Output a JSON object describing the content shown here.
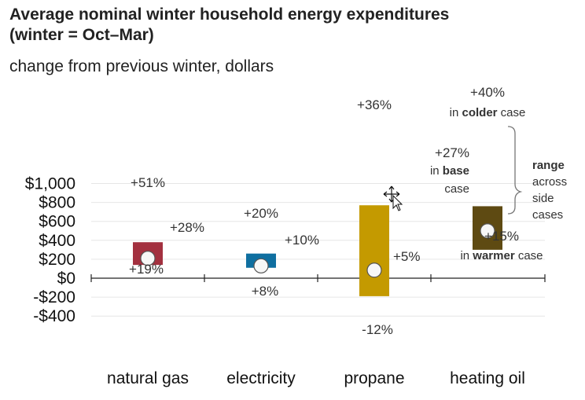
{
  "title_line1": "Average nominal winter household energy expenditures",
  "title_line2": "(winter = Oct–Mar)",
  "subtitle": "change from previous winter, dollars",
  "chart_data": {
    "type": "bar",
    "title": "Average nominal winter household energy expenditures (winter = Oct–Mar)",
    "subtitle": "change from previous winter, dollars",
    "ylim": [
      -400,
      1000
    ],
    "yticks": [
      1000,
      800,
      600,
      400,
      200,
      0,
      -200,
      -400
    ],
    "ytick_labels": [
      "$1,000",
      "$800",
      "$600",
      "$400",
      "$200",
      "$0",
      "-$200",
      "-$400"
    ],
    "grid": true,
    "categories": [
      "natural gas",
      "electricity",
      "propane",
      "heating oil"
    ],
    "series": [
      {
        "bars": [
          {
            "category": "natural gas",
            "low": 140,
            "high": 380,
            "base": 210,
            "color": "#a3303f",
            "high_label": "+51%",
            "base_label": "+28%",
            "low_label": "+19%"
          },
          {
            "category": "electricity",
            "low": 110,
            "high": 260,
            "base": 130,
            "color": "#0f6fa0",
            "high_label": "+20%",
            "base_label": "+10%",
            "low_label": "+8%"
          },
          {
            "category": "propane",
            "low": -190,
            "high": 770,
            "base": 85,
            "color": "#c49a00",
            "high_label": "+36%",
            "base_label": "+5%",
            "low_label": "-12%"
          },
          {
            "category": "heating oil",
            "low": 300,
            "high": 760,
            "base": 500,
            "color": "#5e4a12",
            "high_label": "+40%",
            "base_label": "+27%",
            "low_label": "+15%"
          }
        ]
      }
    ],
    "annotations": {
      "colder_pre": "in ",
      "colder_bold": "colder",
      "colder_post": " case",
      "base_pre": "in ",
      "base_bold": "base",
      "base_post": "case",
      "warmer_pre": "in ",
      "warmer_bold": "warmer",
      "warmer_post": " case",
      "range_bold": "range",
      "range_lines": [
        "across",
        "side",
        "cases"
      ]
    }
  }
}
